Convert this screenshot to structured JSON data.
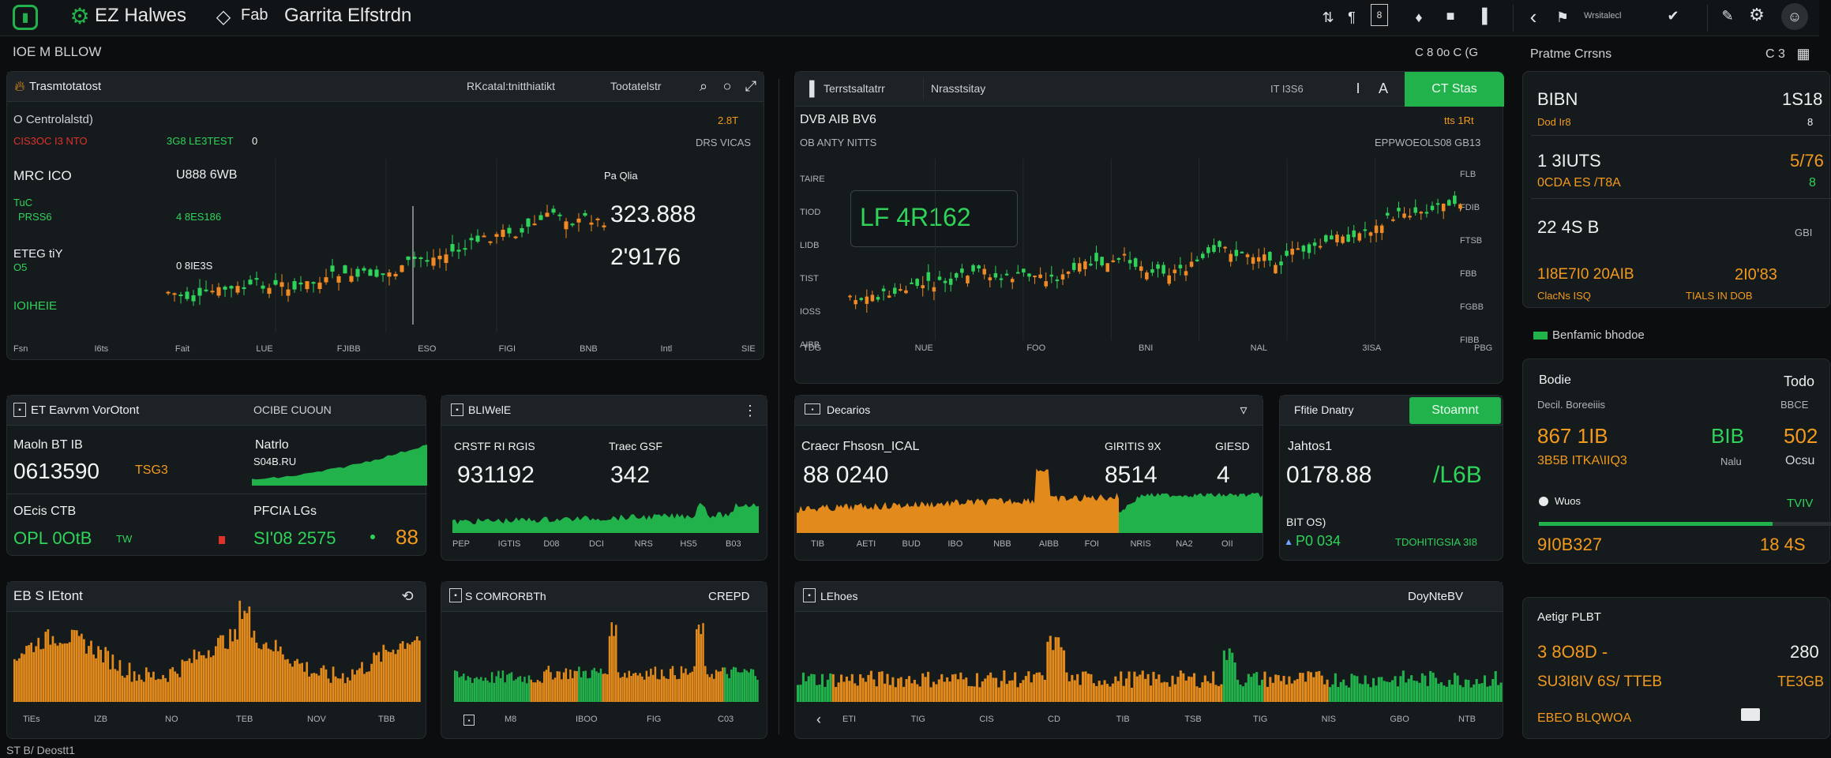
{
  "topbar": {
    "brand": "EZ Halwes",
    "item2": "Fab",
    "title": "Garrita Elfstrdn"
  },
  "subhead": {
    "left": "IOE M BLLOW",
    "right": "C 8 0o C (G"
  },
  "p1": {
    "title": "Trasmtotatost",
    "tab1": "RKcatal:tnitthiatikt",
    "tab2": "Tootatelstr",
    "sub": "O Centrolalstd)",
    "badge": "2.8T",
    "row_red": "CIS3OC I3 NTO",
    "row_g": "3G8 LE3TEST",
    "row_w": "0",
    "right_lbl": "DRS VICAS",
    "k1": "MRC ICO",
    "k2": "U888 6WB",
    "k3": "TuC",
    "k4": "PRSS6",
    "k5": "4 8ES186",
    "k6": "ETEG tiY",
    "k7": "O5",
    "k8": "0 8IE3S",
    "k9": "IOIHEIE",
    "k10": "Pa Qlia",
    "price1": "323.888",
    "price2": "2'9176",
    "xt": [
      "Fsn",
      "I6ts",
      "Fait",
      "LUE",
      "FJIBB",
      "ESO",
      "FIGI",
      "BNB",
      "Intl",
      "SIE"
    ]
  },
  "p2": {
    "title": "Terrstsaltatrr",
    "tab": "Nrasstsitay",
    "i1": "IT I3S6",
    "btn": "CT Stas",
    "sub": "DVB AIB BV6",
    "badge": "tts 1Rt",
    "left_lbl": "OB ANTY NITTS",
    "right_lbl": "EPPWOEOLS08 GB13",
    "overlay": "LF  4R162",
    "yl": [
      "TAIRE",
      "TIOD",
      "LIDB",
      "TIST",
      "IOSS",
      "AIBB"
    ],
    "yr": [
      "FLB",
      "FDIB",
      "FTSB",
      "FBB",
      "FGBB",
      "FIBB"
    ],
    "xt": [
      "TDG",
      "NUE",
      "FOO",
      "BNI",
      "NAL",
      "3ISA",
      "PBG"
    ]
  },
  "right": {
    "head": "Pratme Crrsns",
    "head_r": "C 3",
    "r1l": "BIBN",
    "r1r": "1S18",
    "r1s": "Dod Ir8",
    "r1sr": "8",
    "r2l": "1 3IUTS",
    "r2r": "5/76",
    "r2s": "0CDA ES /T8A",
    "r2sr": "8",
    "r3l": "22 4S B",
    "r3r": "GBI",
    "r4l": "1I8E7I0 20AIB",
    "r4r": "2I0'83",
    "r4s": "ClacNs ISQ",
    "r4sr": "TIALS IN DOB",
    "sec2": "Benfamic bhodoe",
    "s2l": "Bodie",
    "s2r": "Todo",
    "s2sl": "Decil. Boreeiiis",
    "s2sr": "BBCE",
    "s2v1": "867 1IB",
    "s2v2": "BIB",
    "s2v3": "502",
    "s2sub": "3B5B ITKA\\IIQ3",
    "s2sub2": "Nalu",
    "s2sub3": "Ocsu",
    "s2ph": "Wuos",
    "s2pr": "TVIV",
    "s2v4": "9I0B327",
    "s2v5": "18 4S",
    "sec3": "Aetigr PLBT",
    "s3r": "280",
    "s3v1": "3 8O8D -",
    "s3v2": "SU3I8IV 6S/ TTEB",
    "s3v3": "TE3GB",
    "s3v4": "EBEO BLQWOA"
  },
  "m1": {
    "title": "ET Eavrvm VorOtont",
    "sub": "OCIBE CUOUN",
    "l1": "Maoln BT IB",
    "v1": "0613590",
    "v1b": "TSG3",
    "r1": "Natrlo",
    "r1b": "S04B.RU",
    "l2": "OEcis CTB",
    "v2": "OPL 0OtB",
    "v2b": "TW",
    "r2": "PFCIA LGs",
    "v3": "SI'08 2575",
    "v4": "88"
  },
  "m2": {
    "title": "BLIWelE",
    "l1": "CRSTF RI RGIS",
    "l2": "Traec GSF",
    "v1": "931192",
    "v2": "342",
    "xt": [
      "PEP",
      "IGTIS",
      "D08",
      "DCI",
      "NRS",
      "HS5",
      "B03"
    ]
  },
  "m3": {
    "title": "Decarios",
    "l1": "Craecr Fhsosn_ICAL",
    "l2": "GIRITIS 9X",
    "l3": "GIESD",
    "v1": "88 0240",
    "v2": "8514",
    "v3": "4",
    "xt": [
      "TIB",
      "AETI",
      "BUD",
      "IBO",
      "NBB",
      "AIBB",
      "FOI",
      "NRIS",
      "NA2",
      "OII"
    ]
  },
  "m4": {
    "title": "Ffitie Dnatry",
    "btn": "Stoamnt",
    "l1": "Jahtos1",
    "v1": "0178.88",
    "v2": "/L6B",
    "l2": "BIT OS)",
    "v3": "P0 034",
    "v4": "TDOHITIGSIA 3I8"
  },
  "b1": {
    "title": "EB S IEtont",
    "xt": [
      "TiEs",
      "IZB",
      "NO",
      "TEB",
      "NOV",
      "TBB"
    ],
    "foot": "ST B/ Deostt1"
  },
  "b2": {
    "title": "S COMRORBTh",
    "right": "CREPD",
    "xt": [
      "M8",
      "IBOO",
      "FIG",
      "C03"
    ]
  },
  "b3": {
    "title": "LEhoes",
    "right": "DoyNteBV",
    "xt": [
      "ETI",
      "TIG",
      "CIS",
      "CD",
      "TIB",
      "TSB",
      "TIG",
      "NIS",
      "GBO",
      "NTB"
    ]
  }
}
